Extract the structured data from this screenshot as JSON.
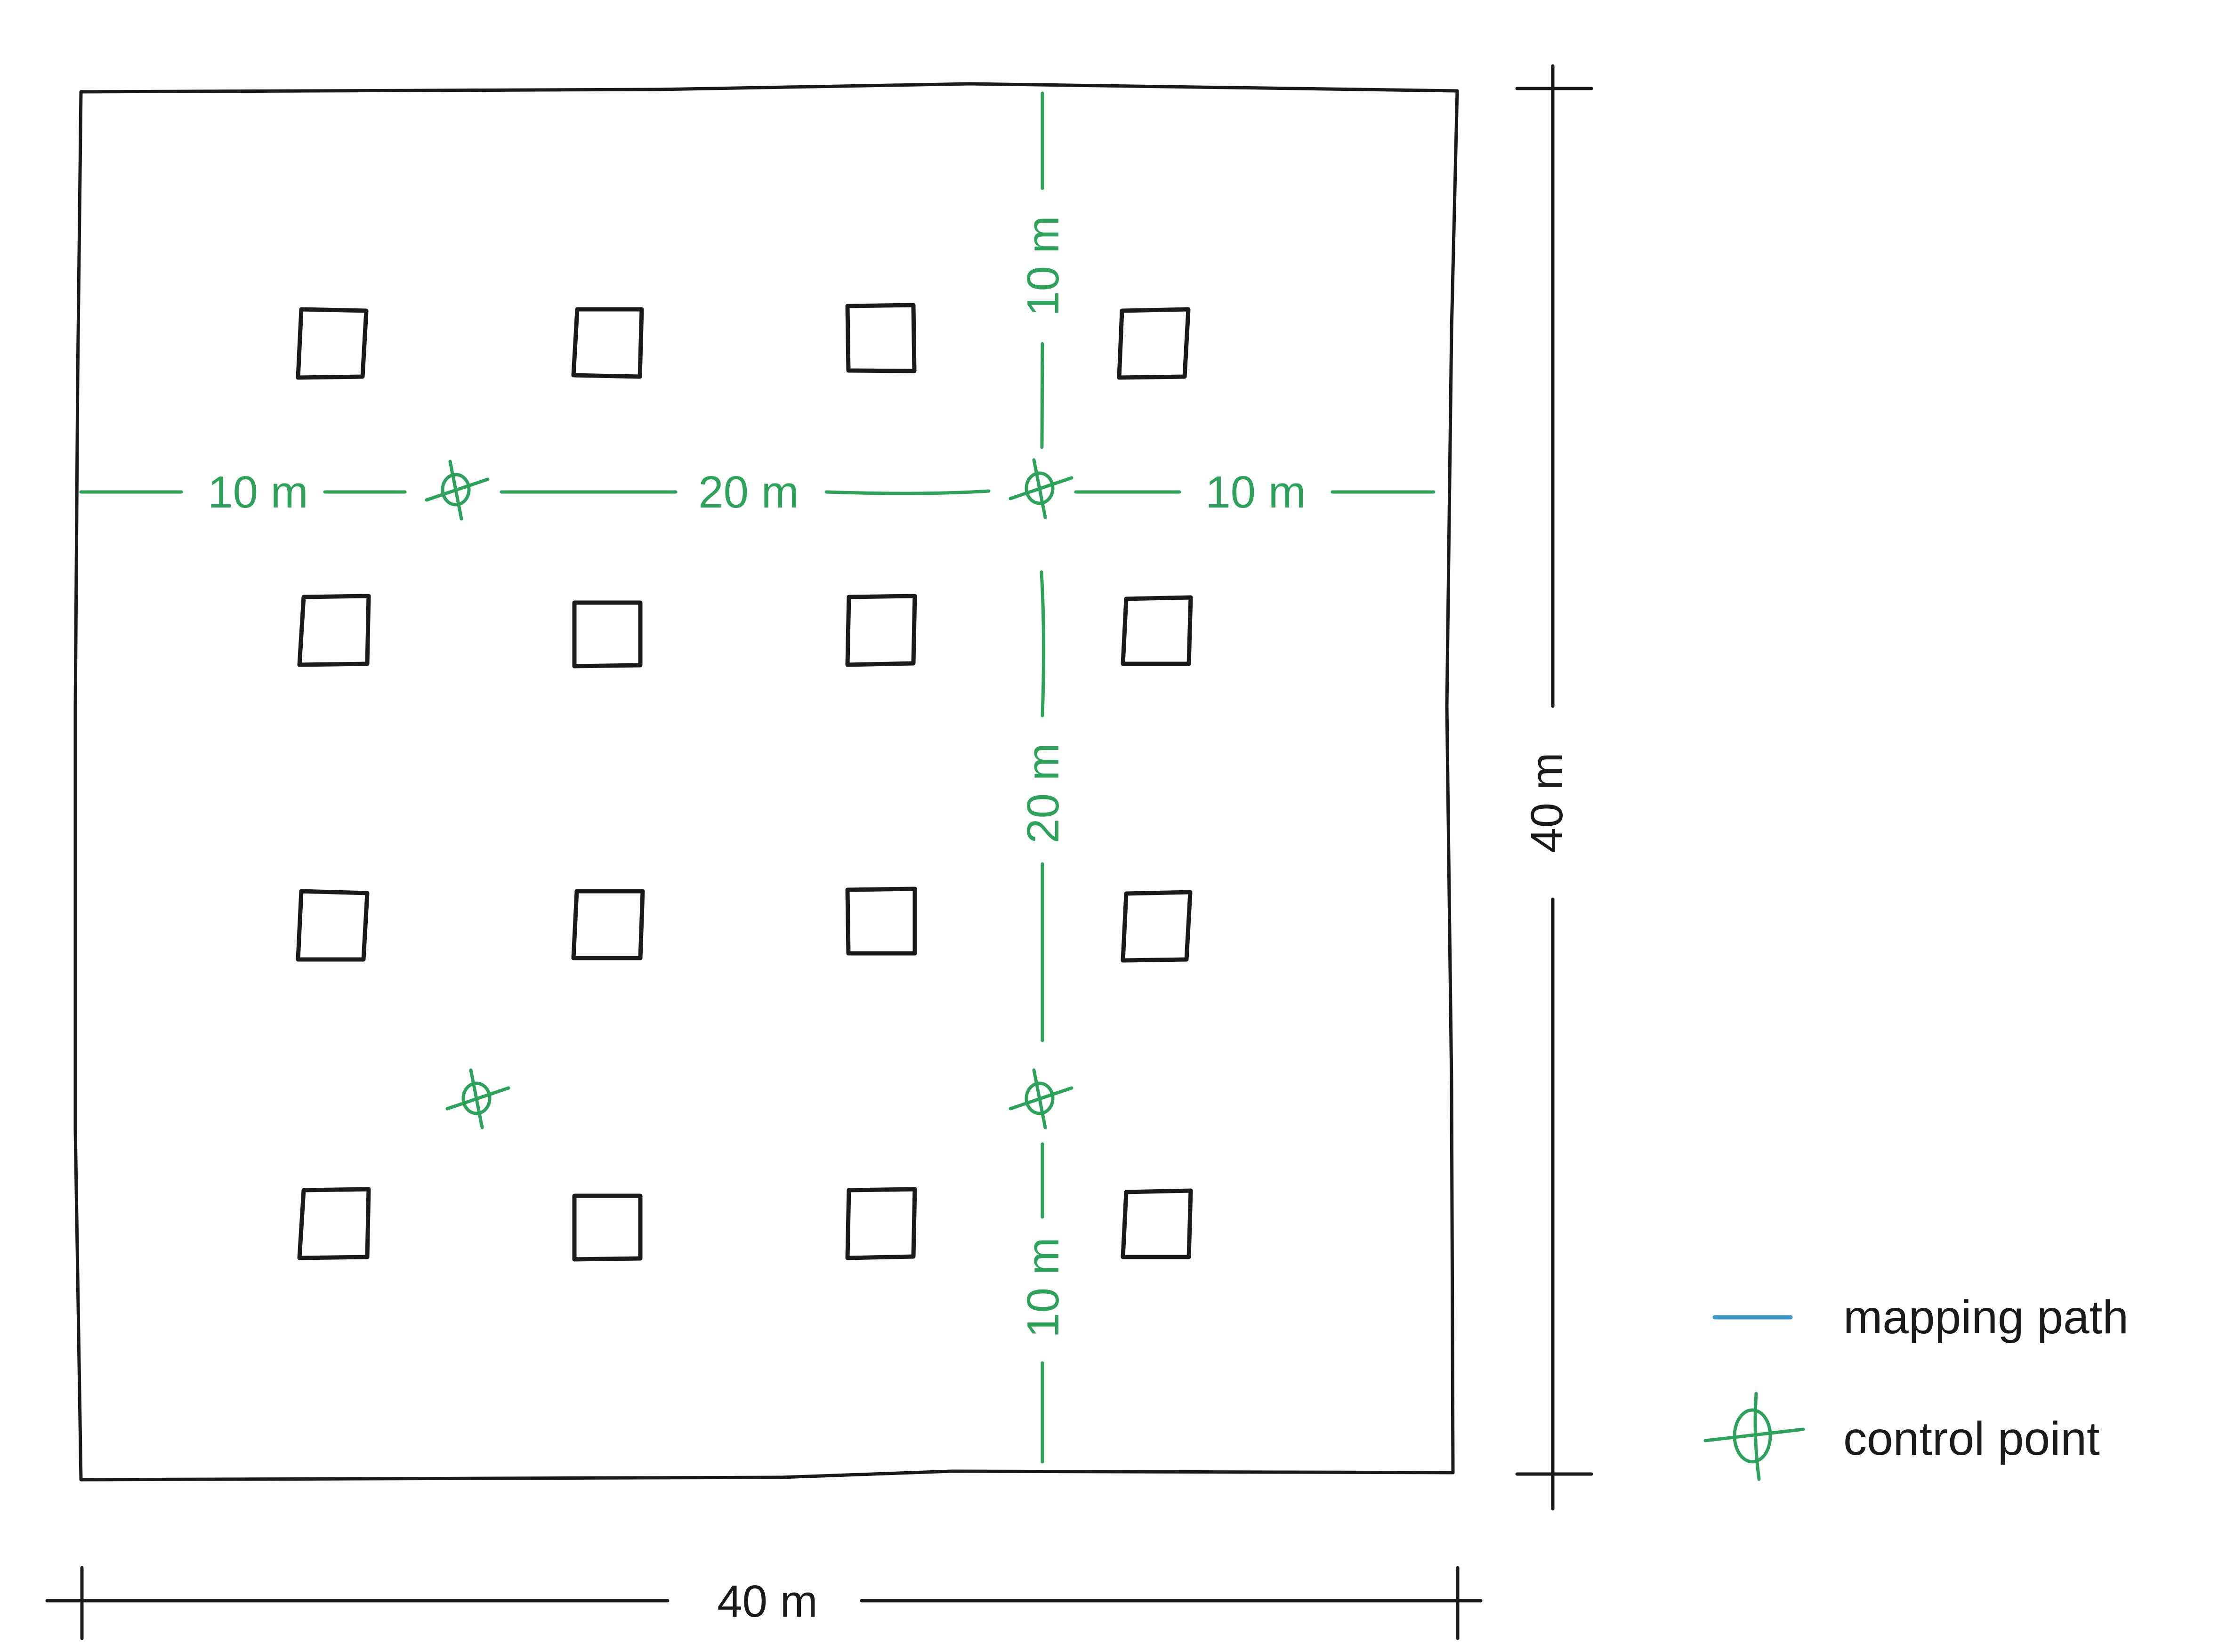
{
  "diagram": {
    "dimensions": {
      "width_label": "40 m",
      "height_label": "40 m"
    },
    "horizontal_segments": [
      {
        "label": "10 m"
      },
      {
        "label": "20 m"
      },
      {
        "label": "10 m"
      }
    ],
    "vertical_segments": [
      {
        "label": "10 m"
      },
      {
        "label": "20 m"
      },
      {
        "label": "10 m"
      }
    ],
    "plots": {
      "rows": 4,
      "columns": 4
    },
    "control_points_count": 4
  },
  "legend": {
    "items": [
      {
        "label": "mapping path",
        "color": "#3a96c4",
        "icon": "line-icon"
      },
      {
        "label": "control point",
        "color": "#2ea15b",
        "icon": "control-point-icon"
      }
    ]
  }
}
